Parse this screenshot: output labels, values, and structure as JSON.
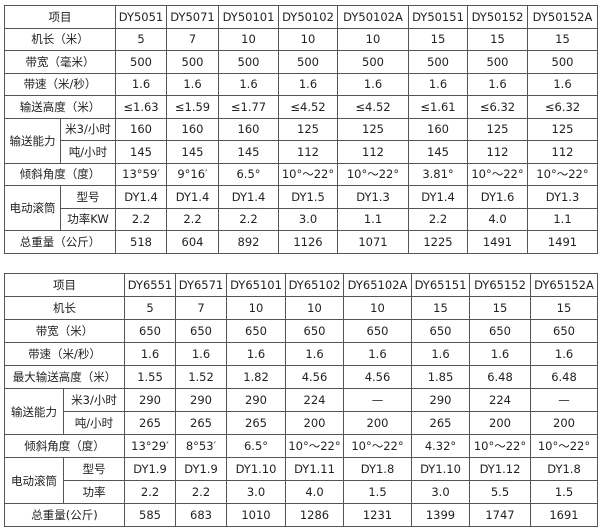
{
  "table1": {
    "header_label": "项目",
    "models": [
      "DY5051",
      "DY5071",
      "DY50101",
      "DY50102",
      "DY50102A",
      "DY50151",
      "DY50152",
      "DY50152A"
    ],
    "rows": {
      "length": {
        "label": "机长（米）",
        "values": [
          "5",
          "7",
          "10",
          "10",
          "10",
          "15",
          "15",
          "15"
        ]
      },
      "width": {
        "label": "带宽（毫米）",
        "values": [
          "500",
          "500",
          "500",
          "500",
          "500",
          "500",
          "500",
          "500"
        ]
      },
      "speed": {
        "label": "带速（米/秒）",
        "values": [
          "1.6",
          "1.6",
          "1.6",
          "1.6",
          "1.6",
          "1.6",
          "1.6",
          "1.6"
        ]
      },
      "height": {
        "label": "输送高度（米）",
        "values": [
          "≤1.63",
          "≤1.59",
          "≤1.77",
          "≤4.52",
          "≤4.52",
          "≤1.61",
          "≤6.32",
          "≤6.32"
        ]
      },
      "capacity_group": "输送能力",
      "capacity_m3": {
        "label": "米3/小时",
        "values": [
          "160",
          "160",
          "160",
          "125",
          "125",
          "160",
          "125",
          "125"
        ]
      },
      "capacity_t": {
        "label": "吨/小时",
        "values": [
          "145",
          "145",
          "145",
          "112",
          "112",
          "145",
          "112",
          "112"
        ]
      },
      "angle": {
        "label": "倾斜角度（度）",
        "values": [
          "13°59′",
          "9°16′",
          "6.5°",
          "10°～22°",
          "10°～22°",
          "3.81°",
          "10°～22°",
          "10°～22°"
        ]
      },
      "drum_group": "电动滚筒",
      "drum_model": {
        "label": "型号",
        "values": [
          "DY1.4",
          "DY1.4",
          "DY1.4",
          "DY1.5",
          "DY1.3",
          "DY1.4",
          "DY1.6",
          "DY1.3"
        ]
      },
      "drum_power": {
        "label": "功率KW",
        "values": [
          "2.2",
          "2.2",
          "2.2",
          "3.0",
          "1.1",
          "2.2",
          "4.0",
          "1.1"
        ]
      },
      "weight": {
        "label": "总重量（公斤）",
        "values": [
          "518",
          "604",
          "892",
          "1126",
          "1071",
          "1225",
          "1491",
          "1491"
        ]
      }
    }
  },
  "table2": {
    "header_label": "项目",
    "models": [
      "DY6551",
      "DY6571",
      "DY65101",
      "DY65102",
      "DY65102A",
      "DY65151",
      "DY65152",
      "DY65152A"
    ],
    "rows": {
      "length": {
        "label": "机长",
        "values": [
          "5",
          "7",
          "10",
          "10",
          "10",
          "15",
          "15",
          "15"
        ]
      },
      "width": {
        "label": "带宽（米）",
        "values": [
          "650",
          "650",
          "650",
          "650",
          "650",
          "650",
          "650",
          "650"
        ]
      },
      "speed": {
        "label": "带速（米/秒）",
        "values": [
          "1.6",
          "1.6",
          "1.6",
          "1.6",
          "1.6",
          "1.6",
          "1.6",
          "1.6"
        ]
      },
      "height": {
        "label": "最大输送高度（米）",
        "values": [
          "1.55",
          "1.52",
          "1.82",
          "4.56",
          "4.56",
          "1.85",
          "6.48",
          "6.48"
        ]
      },
      "capacity_group": "输送能力",
      "capacity_m3": {
        "label": "米3/小时",
        "values": [
          "290",
          "290",
          "290",
          "224",
          "—",
          "290",
          "224",
          "—"
        ]
      },
      "capacity_t": {
        "label": "吨/小时",
        "values": [
          "265",
          "265",
          "265",
          "200",
          "200",
          "265",
          "200",
          "200"
        ]
      },
      "angle": {
        "label": "倾斜角度（度）",
        "values": [
          "13°29′",
          "8°53′",
          "6.5°",
          "10°～22°",
          "10°～22°",
          "4.32°",
          "10°～22°",
          "10°～22°"
        ]
      },
      "drum_group": "电动滚筒",
      "drum_model": {
        "label": "型号",
        "values": [
          "DY1.9",
          "DY1.9",
          "DY1.10",
          "DY1.11",
          "DY1.8",
          "DY1.10",
          "DY1.12",
          "DY1.8"
        ]
      },
      "drum_power": {
        "label": "功率",
        "values": [
          "2.2",
          "2.2",
          "3.0",
          "4.0",
          "1.5",
          "3.0",
          "5.5",
          "1.5"
        ]
      },
      "weight": {
        "label": "总重量(公斤)",
        "values": [
          "585",
          "683",
          "1010",
          "1286",
          "1231",
          "1399",
          "1747",
          "1691"
        ]
      }
    }
  }
}
